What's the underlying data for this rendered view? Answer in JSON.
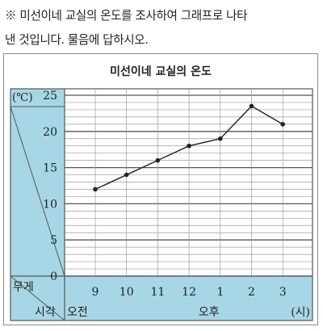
{
  "question": {
    "line1": "※ 미선이네 교실의 온도를 조사하여 그래프로 나타",
    "line2": "낸 것입니다. 물음에 답하시오."
  },
  "chart_data": {
    "type": "line",
    "title": "미선이네 교실의 온도",
    "unit_label": "(℃)",
    "y_corner_label": "무게",
    "x_corner_label": "시각",
    "am_label": "오전",
    "pm_label": "오후",
    "x_unit": "(시)",
    "categories": [
      "9",
      "10",
      "11",
      "12",
      "1",
      "2",
      "3"
    ],
    "y_ticks": [
      "0",
      "5",
      "10",
      "15",
      "20",
      "25"
    ],
    "ylim": [
      0,
      25
    ],
    "series": [
      {
        "values": [
          12,
          14,
          16,
          18,
          19,
          23.5,
          21
        ]
      }
    ],
    "colors": {
      "header": "#a7d7e6",
      "grid_major": "#555555",
      "grid_minor": "#9a9a9a",
      "line": "#222222"
    }
  }
}
